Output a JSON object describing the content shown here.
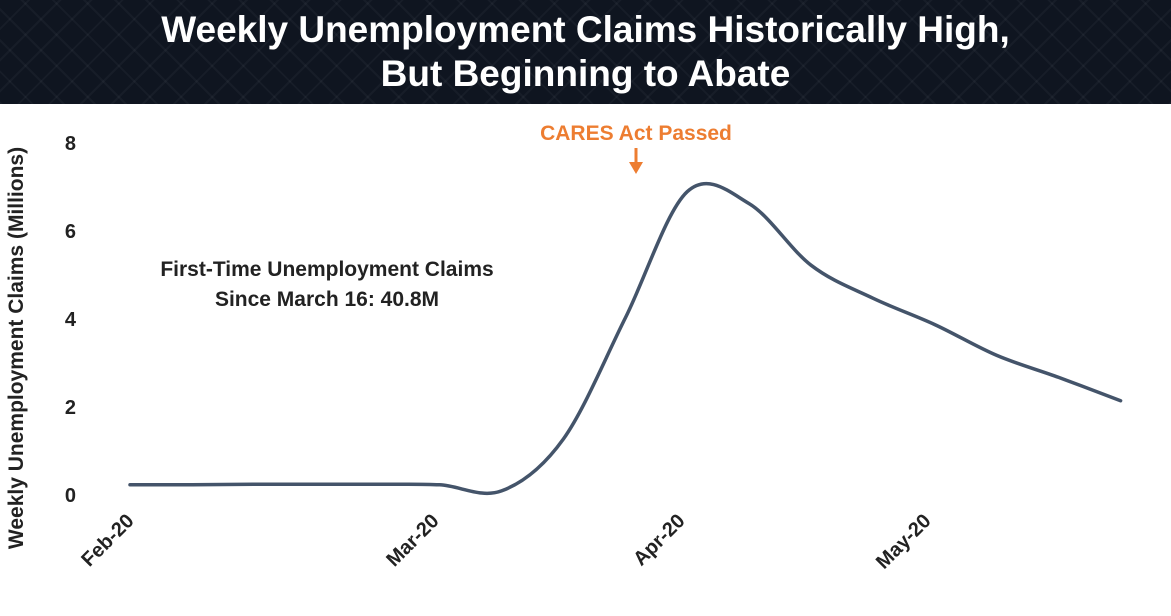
{
  "chart_data": {
    "type": "line",
    "title_lines": [
      "Weekly Unemployment Claims Historically High,",
      "But Beginning to Abate"
    ],
    "xlabel": "",
    "ylabel": "Weekly Unemployment Claims (Millions)",
    "ylim": [
      0,
      8
    ],
    "yticks": [
      "0",
      "2",
      "4",
      "6",
      "8"
    ],
    "xtick_labels": [
      "Feb-20",
      "Mar-20",
      "Apr-20",
      "May-20"
    ],
    "x": [
      "2020-02-01",
      "2020-02-08",
      "2020-02-15",
      "2020-02-22",
      "2020-02-29",
      "2020-03-07",
      "2020-03-14",
      "2020-03-21",
      "2020-03-28",
      "2020-04-04",
      "2020-04-11",
      "2020-04-18",
      "2020-04-25",
      "2020-05-02",
      "2020-05-09",
      "2020-05-16",
      "2020-05-23"
    ],
    "series": [
      {
        "values": [
          0.21,
          0.21,
          0.22,
          0.22,
          0.22,
          0.21,
          0.07,
          1.25,
          4.0,
          6.87,
          6.6,
          5.2,
          4.45,
          3.85,
          3.15,
          2.65,
          2.12
        ],
        "color": "#44546a"
      }
    ],
    "annotations": [
      {
        "text": "CARES Act Passed",
        "x": "2020-03-28",
        "y": 7.05,
        "color": "#ed7d31"
      },
      {
        "text_lines": [
          "First-Time Unemployment Claims",
          "Since March 16: 40.8M"
        ],
        "color": "#222222"
      }
    ],
    "grid": false,
    "legend": "none"
  }
}
